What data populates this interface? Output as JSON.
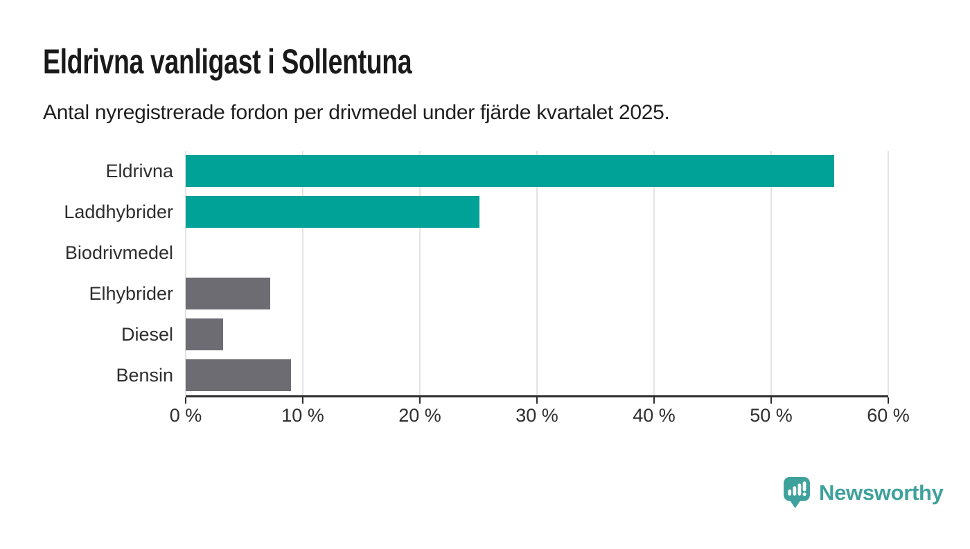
{
  "header": {
    "title": "Eldrivna vanligast i Sollentuna",
    "subtitle": "Antal nyregistrerade fordon per drivmedel under fjärde kvartalet 2025."
  },
  "chart_data": {
    "type": "bar",
    "orientation": "horizontal",
    "title": "Eldrivna vanligast i Sollentuna",
    "subtitle": "Antal nyregistrerade fordon per drivmedel under fjärde kvartalet 2025.",
    "categories": [
      "Eldrivna",
      "Laddhybrider",
      "Biodrivmedel",
      "Elhybrider",
      "Diesel",
      "Bensin"
    ],
    "values": [
      55.4,
      25.1,
      0,
      7.2,
      3.2,
      9
    ],
    "unit": "%",
    "bar_colors": [
      "#00a197",
      "#00a197",
      "#6c6c72",
      "#6c6c72",
      "#6c6c72",
      "#6c6c72"
    ],
    "highlight_color": "#00a197",
    "default_color": "#6c6c72",
    "xlim": [
      0,
      60
    ],
    "x_ticks": [
      0,
      10,
      20,
      30,
      40,
      50,
      60
    ],
    "x_tick_labels": [
      "0 %",
      "10 %",
      "20 %",
      "30 %",
      "40 %",
      "50 %",
      "60 %"
    ],
    "xlabel": "",
    "ylabel": "",
    "grid": "vertical",
    "gridline_color": "#e3e3e3",
    "axis_color": "#2d2d2d",
    "legend": "none"
  },
  "footer": {
    "brand": "Newsworthy",
    "brand_color": "#3fa19b",
    "logo_icon": "bar-chart-speech-bubble-icon"
  }
}
